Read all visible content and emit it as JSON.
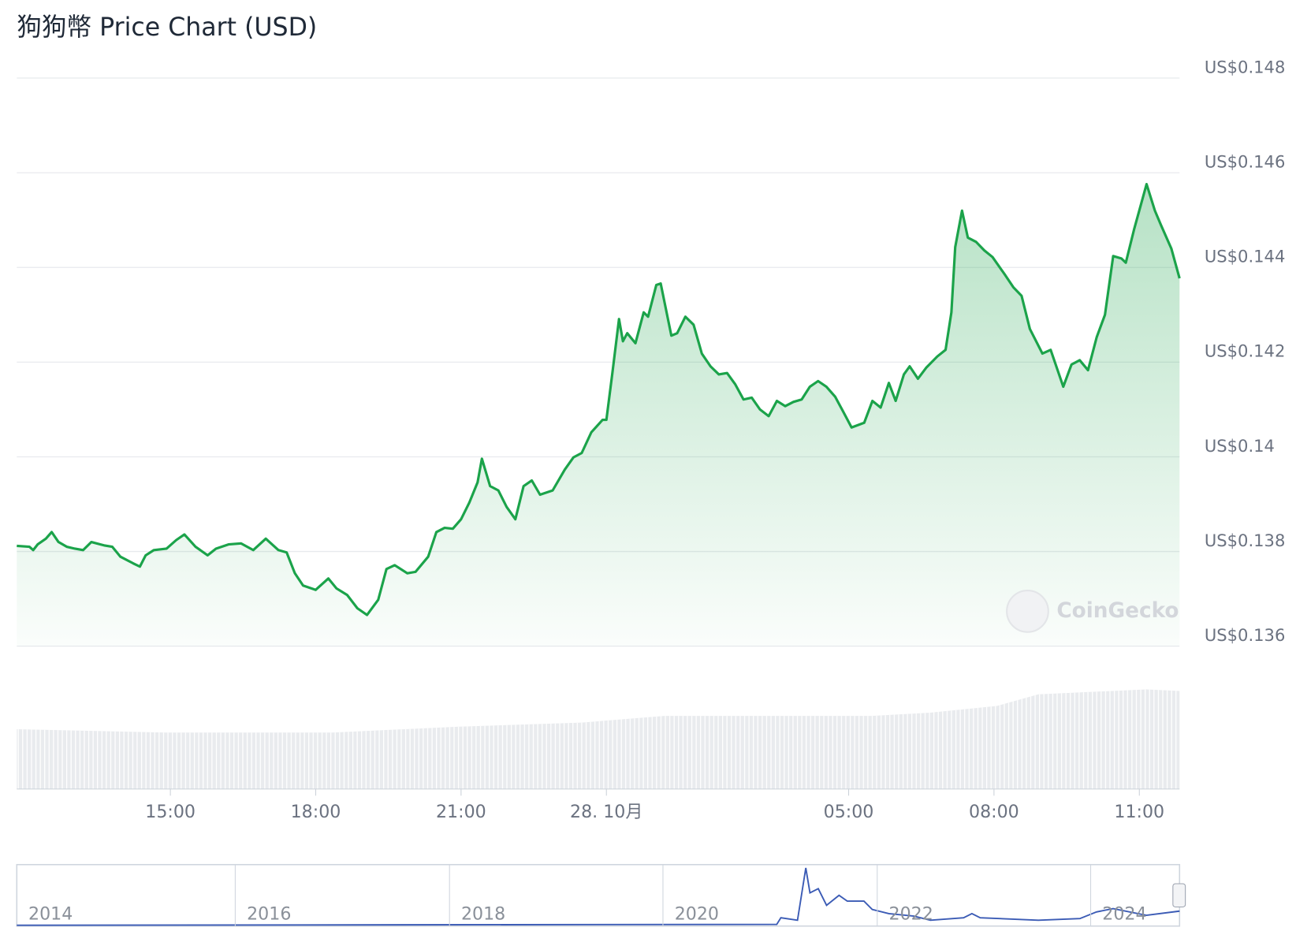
{
  "chart_data": {
    "type": "line",
    "title": "狗狗幣 Price Chart (USD)",
    "x": [
      11.83,
      12.09,
      12.17,
      12.26,
      12.43,
      12.55,
      12.69,
      12.86,
      13.03,
      13.2,
      13.37,
      13.63,
      13.8,
      13.97,
      14.23,
      14.37,
      14.49,
      14.66,
      14.92,
      15.12,
      15.29,
      15.52,
      15.77,
      15.94,
      16.2,
      16.46,
      16.71,
      16.97,
      17.23,
      17.4,
      17.57,
      17.74,
      18.0,
      18.26,
      18.43,
      18.65,
      18.86,
      19.06,
      19.29,
      19.46,
      19.63,
      19.89,
      20.06,
      20.32,
      20.49,
      20.66,
      20.83,
      21.0,
      21.17,
      21.34,
      21.43,
      21.6,
      21.77,
      21.94,
      22.12,
      22.29,
      22.46,
      22.63,
      22.89,
      23.14,
      23.32,
      23.49,
      23.69,
      23.92,
      24.0,
      24.12,
      24.26,
      24.34,
      24.43,
      24.6,
      24.77,
      24.86,
      25.03,
      25.12,
      25.34,
      25.46,
      25.63,
      25.8,
      25.97,
      26.15,
      26.32,
      26.49,
      26.66,
      26.83,
      27.0,
      27.17,
      27.35,
      27.52,
      27.69,
      27.86,
      28.03,
      28.2,
      28.37,
      28.54,
      28.72,
      28.89,
      29.06,
      29.32,
      29.49,
      29.66,
      29.83,
      29.97,
      30.14,
      30.26,
      30.43,
      30.6,
      30.83,
      31.0,
      31.12,
      31.2,
      31.34,
      31.46,
      31.63,
      31.8,
      31.97,
      32.23,
      32.4,
      32.57,
      32.74,
      33.0,
      33.17,
      33.43,
      33.6,
      33.77,
      33.94,
      34.12,
      34.29,
      34.46,
      34.63,
      34.72,
      34.89,
      35.15,
      35.32,
      35.45,
      35.66,
      35.83
    ],
    "series": [
      {
        "name": "Price",
        "color": "#1ba34a",
        "values": [
          0.13812,
          0.1381,
          0.13803,
          0.13815,
          0.13827,
          0.13841,
          0.1382,
          0.1381,
          0.13806,
          0.13803,
          0.1382,
          0.13813,
          0.1381,
          0.13789,
          0.13775,
          0.13768,
          0.13792,
          0.13803,
          0.13806,
          0.13824,
          0.13836,
          0.1381,
          0.13792,
          0.13806,
          0.13815,
          0.13817,
          0.13803,
          0.13827,
          0.13803,
          0.13798,
          0.13754,
          0.13728,
          0.13719,
          0.13743,
          0.13722,
          0.13708,
          0.1368,
          0.13666,
          0.13698,
          0.13763,
          0.13771,
          0.13754,
          0.13757,
          0.13789,
          0.13841,
          0.1385,
          0.13848,
          0.13868,
          0.13903,
          0.13946,
          0.13996,
          0.13938,
          0.13929,
          0.13894,
          0.13868,
          0.13938,
          0.1395,
          0.1392,
          0.13929,
          0.13973,
          0.13999,
          0.14008,
          0.14052,
          0.14078,
          0.14078,
          0.14174,
          0.14291,
          0.14244,
          0.14261,
          0.1424,
          0.14305,
          0.14296,
          0.14363,
          0.14366,
          0.14256,
          0.14261,
          0.14296,
          0.14279,
          0.14218,
          0.14191,
          0.14174,
          0.14177,
          0.14153,
          0.14121,
          0.14125,
          0.141,
          0.14086,
          0.14118,
          0.14107,
          0.14116,
          0.14121,
          0.14148,
          0.1416,
          0.14148,
          0.14127,
          0.14095,
          0.14062,
          0.14072,
          0.14118,
          0.14104,
          0.14156,
          0.14118,
          0.14174,
          0.14191,
          0.14165,
          0.14188,
          0.14212,
          0.14226,
          0.14305,
          0.14443,
          0.1452,
          0.14463,
          0.14454,
          0.14436,
          0.14422,
          0.14384,
          0.14358,
          0.1434,
          0.1427,
          0.14218,
          0.14226,
          0.14148,
          0.14195,
          0.14204,
          0.14183,
          0.14253,
          0.143,
          0.14424,
          0.14419,
          0.1441,
          0.1448,
          0.14576,
          0.1452,
          0.14489,
          0.1444,
          0.14377
        ]
      }
    ],
    "xlim": [
      11.83,
      35.83
    ],
    "xticks": [
      {
        "value": 15,
        "label": "15:00"
      },
      {
        "value": 18,
        "label": "18:00"
      },
      {
        "value": 21,
        "label": "21:00"
      },
      {
        "value": 24,
        "label": "28. 10月"
      },
      {
        "value": 29,
        "label": "05:00"
      },
      {
        "value": 32,
        "label": "08:00"
      },
      {
        "value": 35,
        "label": "11:00"
      }
    ],
    "ylim": [
      0.136,
      0.148
    ],
    "yticks": [
      {
        "value": 0.136,
        "label": "US$0.136"
      },
      {
        "value": 0.138,
        "label": "US$0.138"
      },
      {
        "value": 0.14,
        "label": "US$0.14"
      },
      {
        "value": 0.142,
        "label": "US$0.142"
      },
      {
        "value": 0.144,
        "label": "US$0.144"
      },
      {
        "value": 0.146,
        "label": "US$0.146"
      },
      {
        "value": 0.148,
        "label": "US$0.148"
      }
    ],
    "grid": true,
    "watermark": "CoinGecko",
    "navigator": {
      "labels": [
        "2014",
        "2016",
        "2018",
        "2020",
        "2022",
        "2024"
      ]
    }
  }
}
